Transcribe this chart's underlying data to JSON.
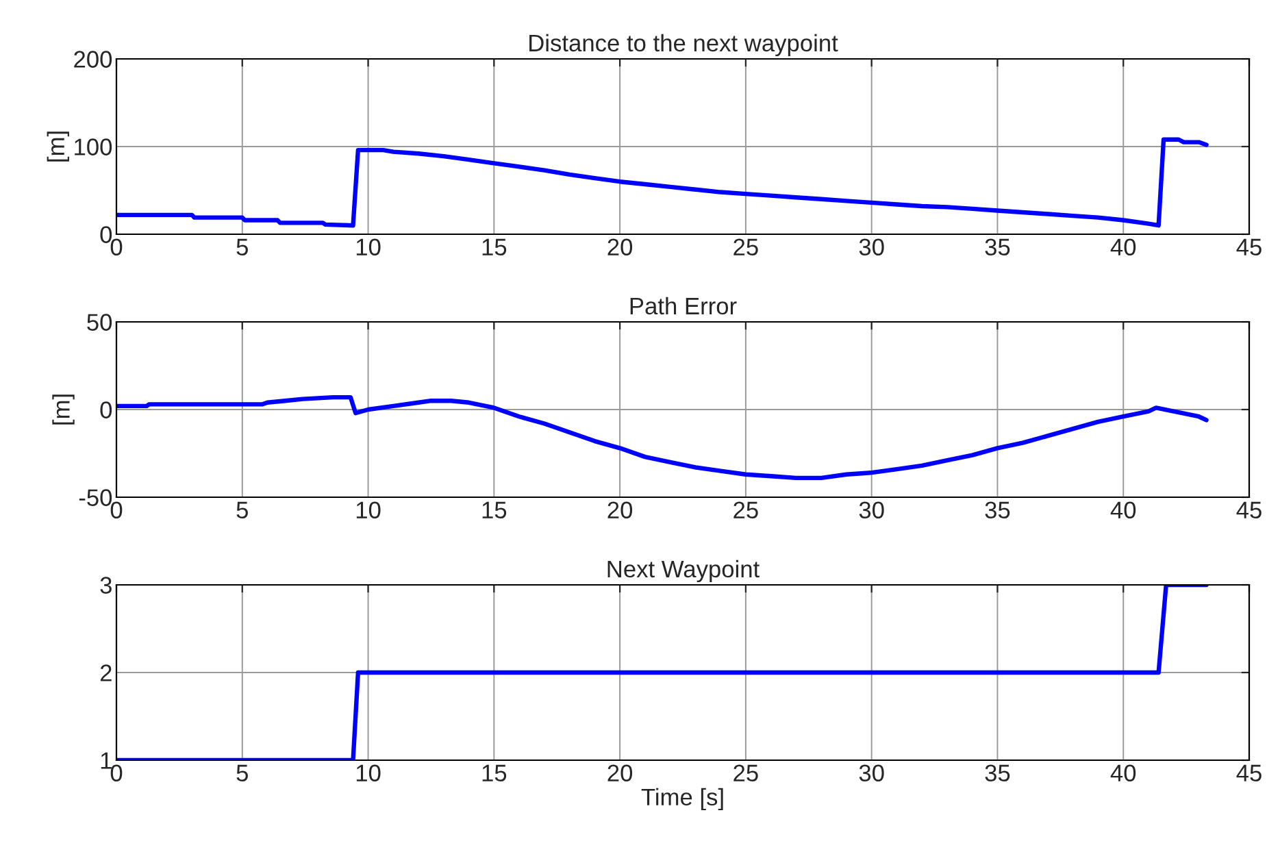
{
  "chart_data": [
    {
      "type": "line",
      "title": "Distance to the next waypoint",
      "ylabel": "[m]",
      "xlim": [
        0,
        45
      ],
      "xticks": [
        0,
        5,
        10,
        15,
        20,
        25,
        30,
        35,
        40,
        45
      ],
      "ylim": [
        0,
        200
      ],
      "yticks": [
        0,
        100,
        200
      ],
      "grid": true,
      "series": [
        {
          "color": "#0000ff",
          "x": [
            0,
            3,
            3.1,
            5,
            5.1,
            6.4,
            6.5,
            8.2,
            8.3,
            9.4,
            9.6,
            10.6,
            11,
            12,
            13,
            14,
            15,
            16,
            17,
            18,
            19,
            20,
            21,
            22,
            23,
            24,
            25,
            26,
            27,
            28,
            29,
            30,
            31,
            32,
            33,
            34,
            35,
            36,
            37,
            38,
            39,
            40,
            41,
            41.4,
            41.6,
            42.2,
            42.4,
            43,
            43.3
          ],
          "values": [
            22,
            22,
            19,
            19,
            16,
            16,
            13,
            13,
            11,
            10,
            96,
            96,
            94,
            92,
            89,
            85,
            81,
            77,
            73,
            68,
            64,
            60,
            57,
            54,
            51,
            48,
            46,
            44,
            42,
            40,
            38,
            36,
            34,
            32,
            31,
            29,
            27,
            25,
            23,
            21,
            19,
            16,
            12,
            10,
            108,
            108,
            105,
            105,
            102
          ]
        }
      ]
    },
    {
      "type": "line",
      "title": "Path Error",
      "ylabel": "[m]",
      "xlim": [
        0,
        45
      ],
      "xticks": [
        0,
        5,
        10,
        15,
        20,
        25,
        30,
        35,
        40,
        45
      ],
      "ylim": [
        -50,
        50
      ],
      "yticks": [
        -50,
        0,
        50
      ],
      "grid": true,
      "series": [
        {
          "color": "#0000ff",
          "x": [
            0,
            1.2,
            1.3,
            5.8,
            6,
            6.7,
            7.4,
            8.6,
            9.3,
            9.5,
            10,
            11,
            12,
            12.5,
            13.3,
            14,
            15,
            16,
            17,
            18,
            19,
            20,
            21,
            22,
            23,
            24,
            25,
            26,
            27,
            28,
            29,
            30,
            31,
            32,
            33,
            34,
            35,
            36,
            37,
            38,
            39,
            40,
            41,
            41.3,
            42,
            43,
            43.3
          ],
          "values": [
            2,
            2,
            3,
            3,
            4,
            5,
            6,
            7,
            7,
            -2,
            0,
            2,
            4,
            5,
            5,
            4,
            1,
            -4,
            -8,
            -13,
            -18,
            -22,
            -27,
            -30,
            -33,
            -35,
            -37,
            -38,
            -39,
            -39,
            -37,
            -36,
            -34,
            -32,
            -29,
            -26,
            -22,
            -19,
            -15,
            -11,
            -7,
            -4,
            -1,
            1,
            -1,
            -4,
            -6
          ]
        }
      ]
    },
    {
      "type": "line",
      "title": "Next Waypoint",
      "xlabel": "Time [s]",
      "xlim": [
        0,
        45
      ],
      "xticks": [
        0,
        5,
        10,
        15,
        20,
        25,
        30,
        35,
        40,
        45
      ],
      "ylim": [
        1,
        3
      ],
      "yticks": [
        1,
        2,
        3
      ],
      "grid": true,
      "series": [
        {
          "color": "#0000ff",
          "x": [
            0,
            9.4,
            9.6,
            41.4,
            41.7,
            43.3
          ],
          "values": [
            1,
            1,
            2,
            2,
            3,
            3
          ]
        }
      ]
    }
  ]
}
